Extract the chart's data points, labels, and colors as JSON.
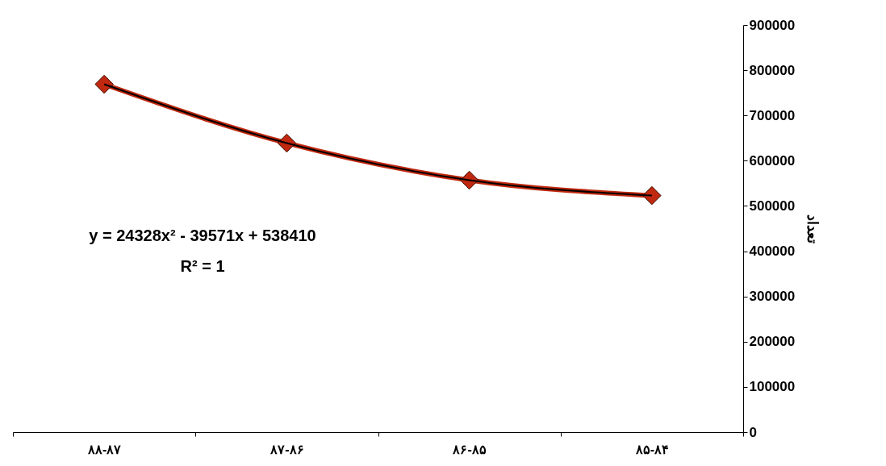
{
  "chart_data": {
    "type": "line",
    "categories": [
      "۸۸-۸۷",
      "۸۷-۸۶",
      "۸۶-۸۵",
      "۸۵-۸۴"
    ],
    "ylabel": "تعداد",
    "series": [
      {
        "color": "#c0280f",
        "marker": "diamond",
        "values": [
          769000,
          639000,
          557000,
          523000
        ]
      },
      {
        "color": "#000000",
        "marker": "none",
        "values": [
          769000,
          639000,
          557000,
          523000
        ]
      }
    ],
    "ylim": [
      0,
      900000
    ],
    "yticks": [
      0,
      100000,
      200000,
      300000,
      400000,
      500000,
      600000,
      700000,
      800000,
      900000
    ],
    "annotations": [
      "y = 24328x² - 39571x + 538410",
      "R² = 1"
    ]
  }
}
